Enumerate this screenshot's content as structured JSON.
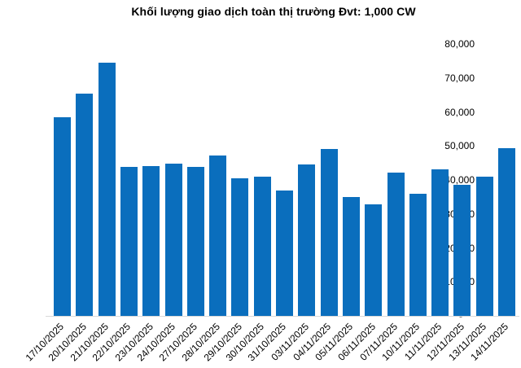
{
  "chart_data": {
    "type": "bar",
    "title": "Khối lượng giao dịch toàn thị trường Đvt: 1,000 CW",
    "unit_label": "Đvt: 1,000 CW",
    "categories": [
      "17/10/2025",
      "20/10/2025",
      "21/10/2025",
      "22/10/2025",
      "23/10/2025",
      "24/10/2025",
      "27/10/2025",
      "28/10/2025",
      "29/10/2025",
      "30/10/2025",
      "31/10/2025",
      "03/11/2025",
      "04/11/2025",
      "05/11/2025",
      "06/11/2025",
      "07/11/2025",
      "10/11/2025",
      "11/11/2025",
      "12/11/2025",
      "13/11/2025",
      "14/11/2025"
    ],
    "values": [
      58400,
      65400,
      74400,
      43900,
      44100,
      44700,
      43800,
      47100,
      40500,
      40900,
      37000,
      44500,
      49000,
      35000,
      32900,
      42100,
      35900,
      43000,
      38600,
      41000,
      49300
    ],
    "xlabel": "",
    "ylabel": "",
    "ylim": [
      0,
      80000
    ],
    "ytick_step": 10000,
    "ytick_labels": [
      "-",
      "10,000",
      "20,000",
      "30,000",
      "40,000",
      "50,000",
      "60,000",
      "70,000",
      "80,000"
    ],
    "grid": false,
    "legend_position": "none",
    "bar_color": "#0a6ebd",
    "axis_line_color": "#d9d9d9",
    "text_color": "#000000"
  }
}
